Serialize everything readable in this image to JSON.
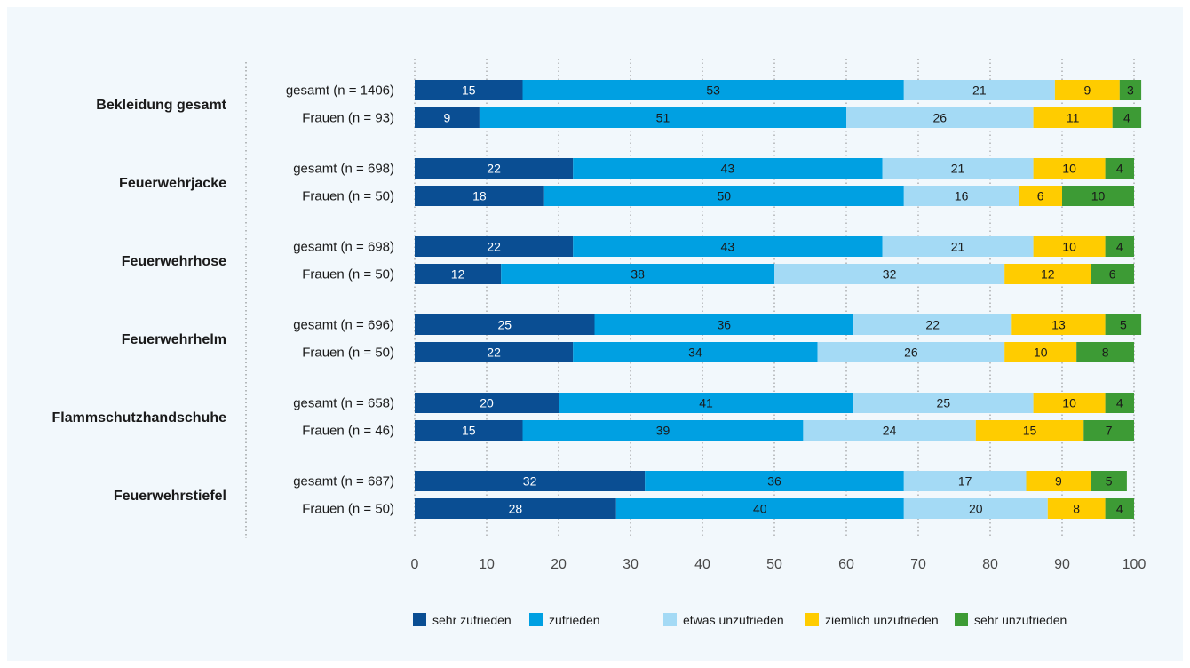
{
  "chart_data": {
    "type": "bar",
    "orientation": "horizontal",
    "stacked": true,
    "xlim": [
      0,
      100
    ],
    "x_ticks": [
      0,
      10,
      20,
      30,
      40,
      50,
      60,
      70,
      80,
      90,
      100
    ],
    "grid": true,
    "legend_position": "bottom",
    "series": [
      {
        "name": "sehr zufrieden",
        "color": "#0a4e93",
        "label_color": "#ffffff"
      },
      {
        "name": "zufrieden",
        "color": "#00a0e2",
        "label_color": "#1a1a1a"
      },
      {
        "name": "etwas unzufrieden",
        "color": "#a4daf5",
        "label_color": "#1a1a1a"
      },
      {
        "name": "ziemlich unzufrieden",
        "color": "#ffcc00",
        "label_color": "#1a1a1a"
      },
      {
        "name": "sehr unzufrieden",
        "color": "#3d9b35",
        "label_color": "#1a1a1a"
      }
    ],
    "groups": [
      {
        "name": "Bekleidung gesamt",
        "rows": [
          {
            "label": "gesamt (n = 1406)",
            "values": [
              15,
              53,
              21,
              9,
              3
            ]
          },
          {
            "label": "Frauen (n = 93)",
            "values": [
              9,
              51,
              26,
              11,
              4
            ]
          }
        ]
      },
      {
        "name": "Feuerwehrjacke",
        "rows": [
          {
            "label": "gesamt (n = 698)",
            "values": [
              22,
              43,
              21,
              10,
              4
            ]
          },
          {
            "label": "Frauen (n = 50)",
            "values": [
              18,
              50,
              16,
              6,
              10
            ]
          }
        ]
      },
      {
        "name": "Feuerwehrhose",
        "rows": [
          {
            "label": "gesamt (n = 698)",
            "values": [
              22,
              43,
              21,
              10,
              4
            ]
          },
          {
            "label": "Frauen (n = 50)",
            "values": [
              12,
              38,
              32,
              12,
              6
            ]
          }
        ]
      },
      {
        "name": "Feuerwehrhelm",
        "rows": [
          {
            "label": "gesamt (n = 696)",
            "values": [
              25,
              36,
              22,
              13,
              5
            ]
          },
          {
            "label": "Frauen (n = 50)",
            "values": [
              22,
              34,
              26,
              10,
              8
            ]
          }
        ]
      },
      {
        "name": "Flammschutzhandschuhe",
        "rows": [
          {
            "label": "gesamt (n = 658)",
            "values": [
              20,
              41,
              25,
              10,
              4
            ]
          },
          {
            "label": "Frauen (n = 46)",
            "values": [
              15,
              39,
              24,
              15,
              7
            ]
          }
        ]
      },
      {
        "name": "Feuerwehrstiefel",
        "rows": [
          {
            "label": "gesamt (n = 687)",
            "values": [
              32,
              36,
              17,
              9,
              5
            ]
          },
          {
            "label": "Frauen (n = 50)",
            "values": [
              28,
              40,
              20,
              8,
              4
            ]
          }
        ]
      }
    ]
  }
}
